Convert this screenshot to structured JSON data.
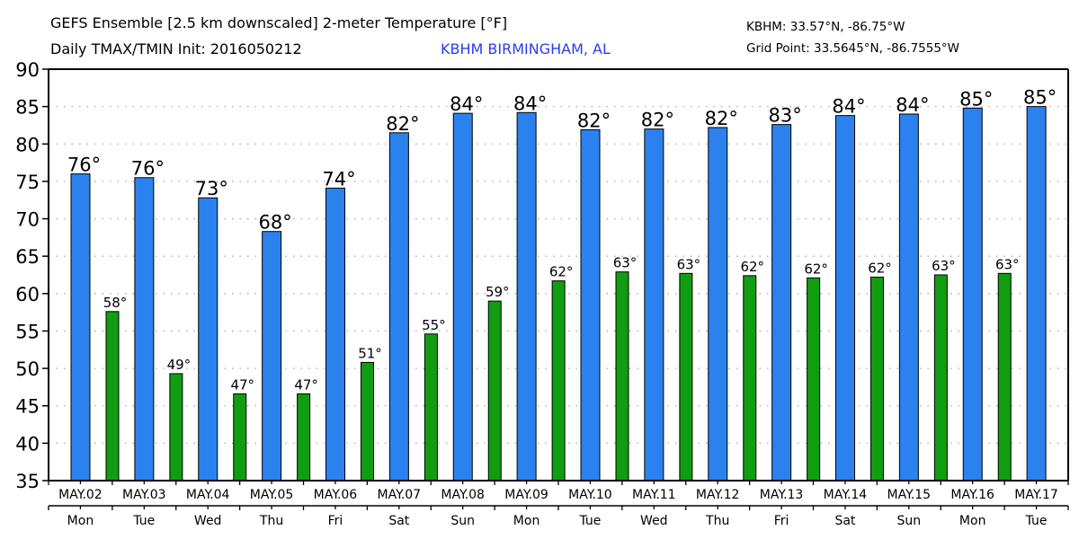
{
  "header": {
    "title_line1": "GEFS Ensemble [2.5 km downscaled] 2-meter Temperature [°F]",
    "title_line2": "Daily TMAX/TMIN Init: 2016050212",
    "station_label": "KBHM BIRMINGHAM, AL",
    "station_coords": "KBHM: 33.57°N, -86.75°W",
    "grid_point_coords": "Grid Point: 33.5645°N, -86.7555°W"
  },
  "colors": {
    "tmax_bar": "#2b82ee",
    "tmin_bar": "#119d11",
    "station_text": "#2a3cf0",
    "grid": "#aaaaaa"
  },
  "chart_data": {
    "type": "bar",
    "title": "GEFS Ensemble [2.5 km downscaled] 2-meter Temperature [°F] — Daily TMAX/TMIN Init: 2016050212",
    "xlabel": "",
    "ylabel": "",
    "ylim": [
      35,
      90
    ],
    "yticks": [
      35,
      40,
      45,
      50,
      55,
      60,
      65,
      70,
      75,
      80,
      85,
      90
    ],
    "grid": true,
    "legend": "none",
    "categories": [
      "MAY.02",
      "MAY.03",
      "MAY.04",
      "MAY.05",
      "MAY.06",
      "MAY.07",
      "MAY.08",
      "MAY.09",
      "MAY.10",
      "MAY.11",
      "MAY.12",
      "MAY.13",
      "MAY.14",
      "MAY.15",
      "MAY.16",
      "MAY.17"
    ],
    "weekdays": [
      "Mon",
      "Tue",
      "Wed",
      "Thu",
      "Fri",
      "Sat",
      "Sun",
      "Mon",
      "Tue",
      "Wed",
      "Thu",
      "Fri",
      "Sat",
      "Sun",
      "Mon",
      "Tue"
    ],
    "series": [
      {
        "name": "TMAX",
        "values": [
          76.0,
          75.5,
          72.8,
          68.3,
          74.1,
          81.5,
          84.1,
          84.2,
          81.9,
          82.0,
          82.2,
          82.6,
          83.8,
          84.0,
          84.8,
          85.0
        ],
        "labels": [
          "76°",
          "76°",
          "73°",
          "68°",
          "74°",
          "82°",
          "84°",
          "84°",
          "82°",
          "82°",
          "82°",
          "83°",
          "84°",
          "84°",
          "85°",
          "85°"
        ]
      },
      {
        "name": "TMIN",
        "values": [
          57.6,
          49.3,
          46.6,
          46.6,
          50.8,
          54.6,
          59.0,
          61.7,
          62.9,
          62.7,
          62.4,
          62.1,
          62.2,
          62.5,
          62.7
        ],
        "labels": [
          "58°",
          "49°",
          "47°",
          "47°",
          "51°",
          "55°",
          "59°",
          "62°",
          "63°",
          "63°",
          "62°",
          "62°",
          "62°",
          "63°",
          "63°"
        ]
      }
    ]
  }
}
